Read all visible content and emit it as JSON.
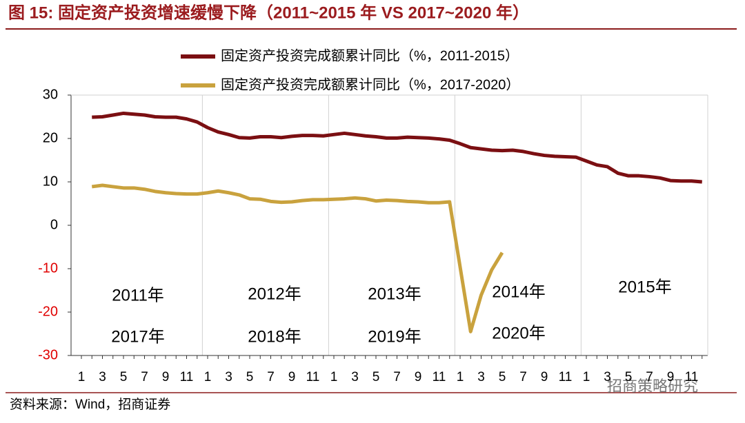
{
  "chart_data": {
    "type": "line",
    "title": "图 15:  固定资产投资增速缓慢下降（2011~2015 年 VS 2017~2020 年）",
    "categories": [
      "1",
      null,
      "3",
      null,
      "5",
      null,
      "7",
      null,
      "9",
      null,
      "11",
      null,
      "1",
      null,
      "3",
      null,
      "5",
      null,
      "7",
      null,
      "9",
      null,
      "11",
      null,
      "1",
      null,
      "3",
      null,
      "5",
      null,
      "7",
      null,
      "9",
      null,
      "11",
      null,
      "1",
      null,
      "3",
      null,
      "5",
      null,
      "7",
      null,
      "9",
      null,
      "11",
      null,
      "1",
      null,
      "3",
      null,
      "5",
      null,
      "7",
      null,
      "9",
      null,
      "11",
      null
    ],
    "series": [
      {
        "name": "固定资产投资完成额累计同比（%，2011-2015）",
        "color": "#7b0f12",
        "values": [
          null,
          24.9,
          25.0,
          25.4,
          25.8,
          25.6,
          25.4,
          25.0,
          24.9,
          24.9,
          24.5,
          23.8,
          22.5,
          21.5,
          20.9,
          20.2,
          20.1,
          20.4,
          20.4,
          20.2,
          20.5,
          20.7,
          20.7,
          20.6,
          20.9,
          21.2,
          20.9,
          20.6,
          20.4,
          20.1,
          20.1,
          20.3,
          20.2,
          20.1,
          19.9,
          19.6,
          18.8,
          17.9,
          17.6,
          17.3,
          17.2,
          17.3,
          17.0,
          16.5,
          16.1,
          15.9,
          15.8,
          15.7,
          14.8,
          13.9,
          13.5,
          12.0,
          11.4,
          11.4,
          11.2,
          10.9,
          10.3,
          10.2,
          10.2,
          10.0
        ]
      },
      {
        "name": "固定资产投资完成额累计同比（%，2017-2020）",
        "color": "#c9a23e",
        "values": [
          null,
          8.9,
          9.2,
          8.9,
          8.6,
          8.6,
          8.3,
          7.8,
          7.5,
          7.3,
          7.2,
          7.2,
          7.5,
          7.9,
          7.5,
          7.0,
          6.1,
          6.0,
          5.5,
          5.3,
          5.4,
          5.7,
          5.9,
          5.9,
          6.0,
          6.1,
          6.3,
          6.1,
          5.6,
          5.8,
          5.7,
          5.5,
          5.4,
          5.2,
          5.2,
          5.4,
          -9.6,
          -24.5,
          -16.1,
          -10.3,
          -6.3,
          null,
          null,
          null,
          null,
          null,
          null,
          null,
          null,
          null,
          null,
          null,
          null,
          null,
          null,
          null,
          null,
          null,
          null,
          null
        ]
      }
    ],
    "ylim": [
      -30,
      30
    ],
    "yticks": [
      -30,
      -20,
      -10,
      0,
      10,
      20,
      30
    ],
    "negative_tick_color": "#e00000",
    "annotations": [
      "2011年",
      "2017年",
      "2012年",
      "2018年",
      "2013年",
      "2019年",
      "2014年",
      "2020年",
      "2015年"
    ],
    "source": "资料来源：Wind，招商证券",
    "watermark": "招商策略研究"
  }
}
